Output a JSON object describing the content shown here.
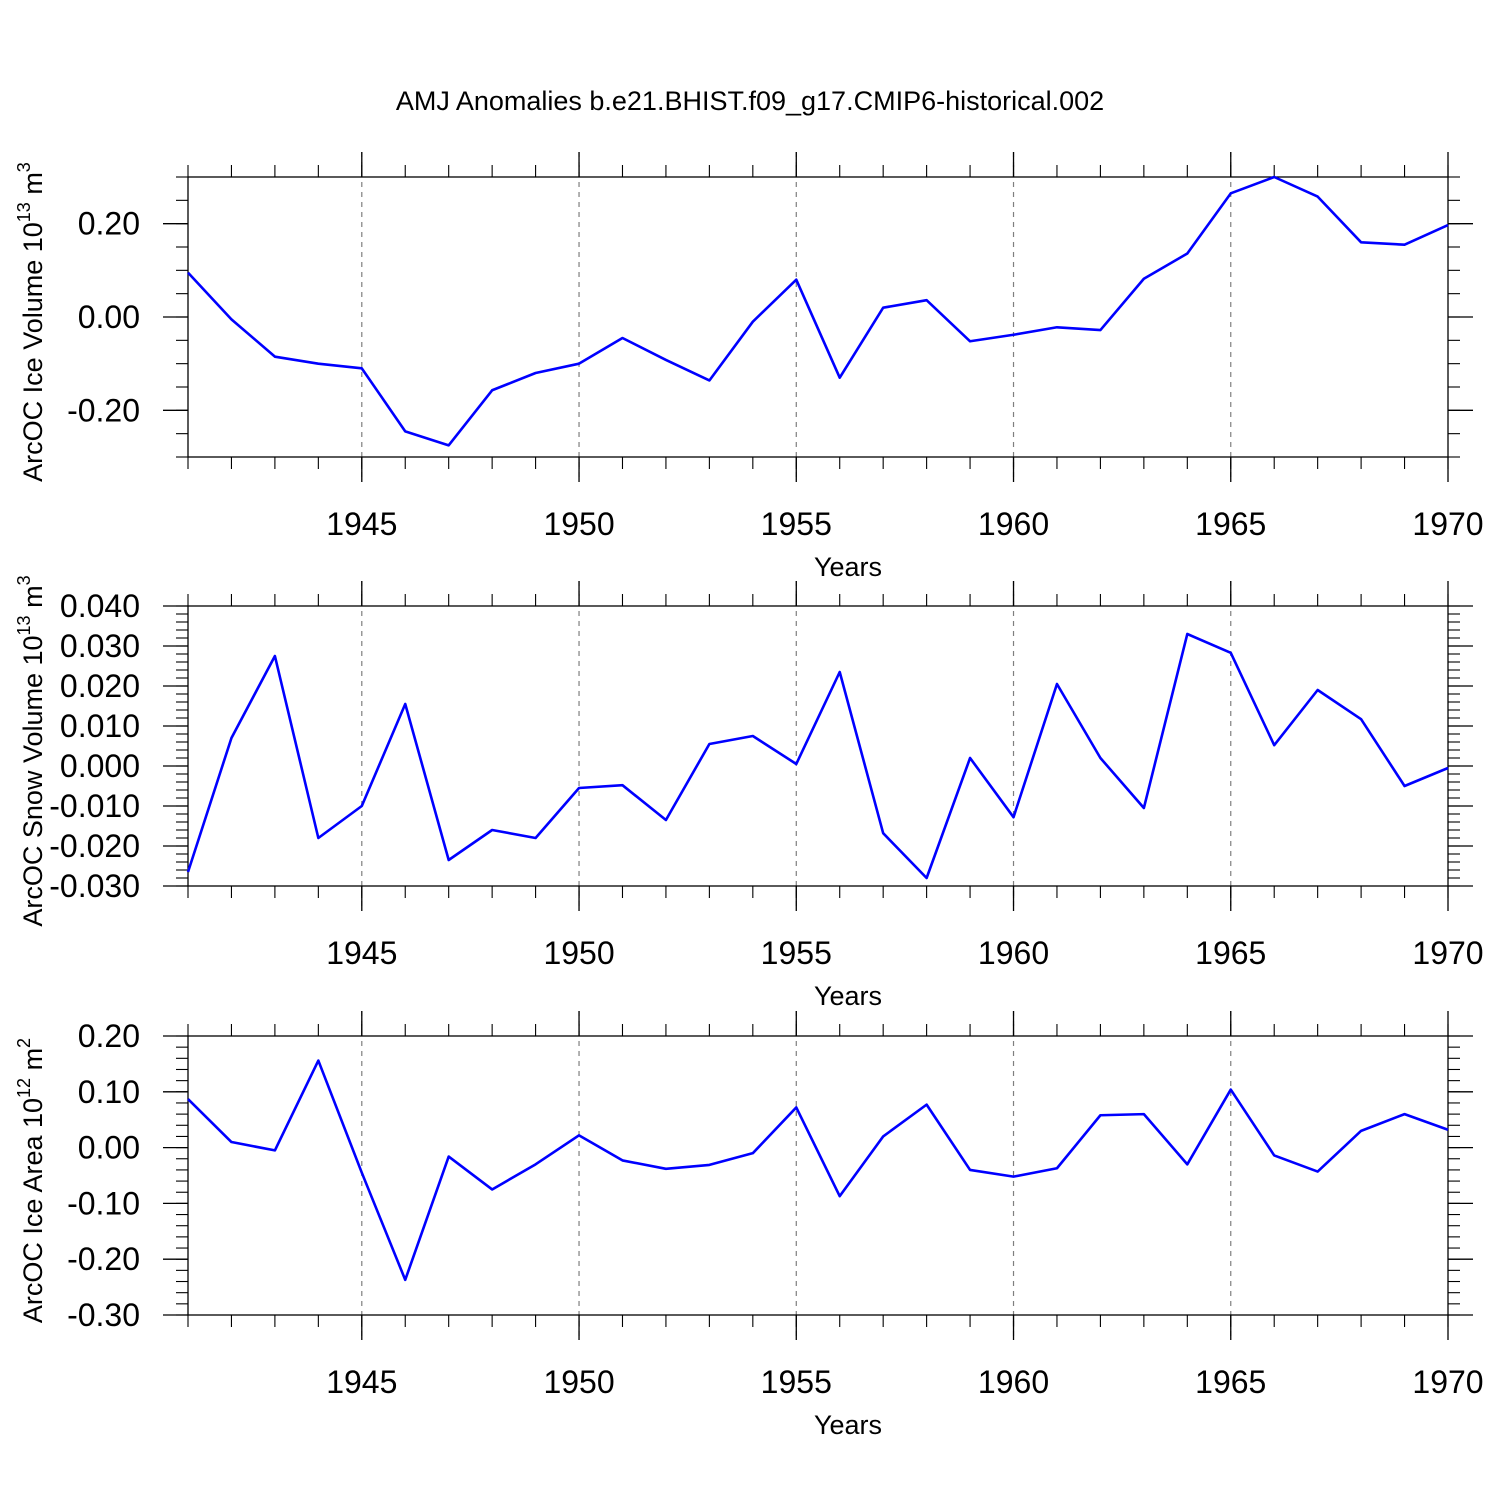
{
  "title": "AMJ Anomalies b.e21.BHIST.f09_g17.CMIP6-historical.002",
  "colors": {
    "line": "#0000ff",
    "axis": "#000000",
    "grid": "#7f7f7f"
  },
  "chart_data": [
    {
      "type": "line",
      "ylabel": "ArcOC Ice Volume 10",
      "yunit_exp": "13",
      "yunit_suffix": " m",
      "yunit_sup": "3",
      "xlabel": "Years",
      "xlim": [
        1941,
        1970
      ],
      "ylim": [
        -0.3,
        0.3
      ],
      "yticks": [
        -0.2,
        0.0,
        0.2
      ],
      "ytick_labels": [
        "-0.20",
        "0.00",
        "0.20"
      ],
      "xticks": [
        1945,
        1950,
        1955,
        1960,
        1965,
        1970
      ],
      "xtick_labels": [
        "1945",
        "1950",
        "1955",
        "1960",
        "1965",
        "1970"
      ],
      "x_minor_step": 1,
      "y_minor_step": 0.05,
      "grid_x": [
        1945,
        1950,
        1955,
        1960,
        1965
      ],
      "x": [
        1941,
        1942,
        1943,
        1944,
        1945,
        1946,
        1947,
        1948,
        1949,
        1950,
        1951,
        1952,
        1953,
        1954,
        1955,
        1956,
        1957,
        1958,
        1959,
        1960,
        1961,
        1962,
        1963,
        1964,
        1965,
        1966,
        1967,
        1968,
        1969,
        1970
      ],
      "values": [
        0.095,
        -0.005,
        -0.085,
        -0.1,
        -0.11,
        -0.245,
        -0.275,
        -0.157,
        -0.12,
        -0.1,
        -0.045,
        -0.092,
        -0.136,
        -0.01,
        0.08,
        -0.13,
        0.02,
        0.036,
        -0.052,
        -0.038,
        -0.022,
        -0.028,
        0.082,
        0.136,
        0.265,
        0.3,
        0.258,
        0.16,
        0.155,
        0.197
      ]
    },
    {
      "type": "line",
      "ylabel": "ArcOC Snow Volume 10",
      "yunit_exp": "13",
      "yunit_suffix": " m",
      "yunit_sup": "3",
      "xlabel": "Years",
      "xlim": [
        1941,
        1970
      ],
      "ylim": [
        -0.03,
        0.04
      ],
      "yticks": [
        -0.03,
        -0.02,
        -0.01,
        0.0,
        0.01,
        0.02,
        0.03,
        0.04
      ],
      "ytick_labels": [
        "-0.030",
        "-0.020",
        "-0.010",
        "0.000",
        "0.010",
        "0.020",
        "0.030",
        "0.040"
      ],
      "xticks": [
        1945,
        1950,
        1955,
        1960,
        1965,
        1970
      ],
      "xtick_labels": [
        "1945",
        "1950",
        "1955",
        "1960",
        "1965",
        "1970"
      ],
      "x_minor_step": 1,
      "y_minor_step": 0.002,
      "grid_x": [
        1945,
        1950,
        1955,
        1960,
        1965
      ],
      "x": [
        1941,
        1942,
        1943,
        1944,
        1945,
        1946,
        1947,
        1948,
        1949,
        1950,
        1951,
        1952,
        1953,
        1954,
        1955,
        1956,
        1957,
        1958,
        1959,
        1960,
        1961,
        1962,
        1963,
        1964,
        1965,
        1966,
        1967,
        1968,
        1969,
        1970
      ],
      "values": [
        -0.0265,
        0.007,
        0.0275,
        -0.018,
        -0.01,
        0.0155,
        -0.0235,
        -0.016,
        -0.018,
        -0.0055,
        -0.0048,
        -0.0135,
        0.0055,
        0.0075,
        0.0005,
        0.0235,
        -0.0168,
        -0.028,
        0.002,
        -0.0128,
        0.0205,
        0.002,
        -0.0105,
        0.033,
        0.0283,
        0.0052,
        0.019,
        0.0117,
        -0.005,
        -0.0005
      ]
    },
    {
      "type": "line",
      "ylabel": "ArcOC Ice Area 10",
      "yunit_exp": "12",
      "yunit_suffix": " m",
      "yunit_sup": "2",
      "xlabel": "Years",
      "xlim": [
        1941,
        1970
      ],
      "ylim": [
        -0.3,
        0.2
      ],
      "yticks": [
        -0.3,
        -0.2,
        -0.1,
        0.0,
        0.1,
        0.2
      ],
      "ytick_labels": [
        "-0.30",
        "-0.20",
        "-0.10",
        "0.00",
        "0.10",
        "0.20"
      ],
      "xticks": [
        1945,
        1950,
        1955,
        1960,
        1965,
        1970
      ],
      "xtick_labels": [
        "1945",
        "1950",
        "1955",
        "1960",
        "1965",
        "1970"
      ],
      "x_minor_step": 1,
      "y_minor_step": 0.02,
      "grid_x": [
        1945,
        1950,
        1955,
        1960,
        1965
      ],
      "x": [
        1941,
        1942,
        1943,
        1944,
        1945,
        1946,
        1947,
        1948,
        1949,
        1950,
        1951,
        1952,
        1953,
        1954,
        1955,
        1956,
        1957,
        1958,
        1959,
        1960,
        1961,
        1962,
        1963,
        1964,
        1965,
        1966,
        1967,
        1968,
        1969,
        1970
      ],
      "values": [
        0.087,
        0.01,
        -0.005,
        0.156,
        -0.045,
        -0.237,
        -0.016,
        -0.075,
        -0.03,
        0.022,
        -0.023,
        -0.038,
        -0.031,
        -0.01,
        0.072,
        -0.087,
        0.02,
        0.077,
        -0.04,
        -0.052,
        -0.037,
        0.058,
        0.06,
        -0.03,
        0.104,
        -0.014,
        -0.043,
        0.03,
        0.06,
        0.032
      ]
    }
  ]
}
